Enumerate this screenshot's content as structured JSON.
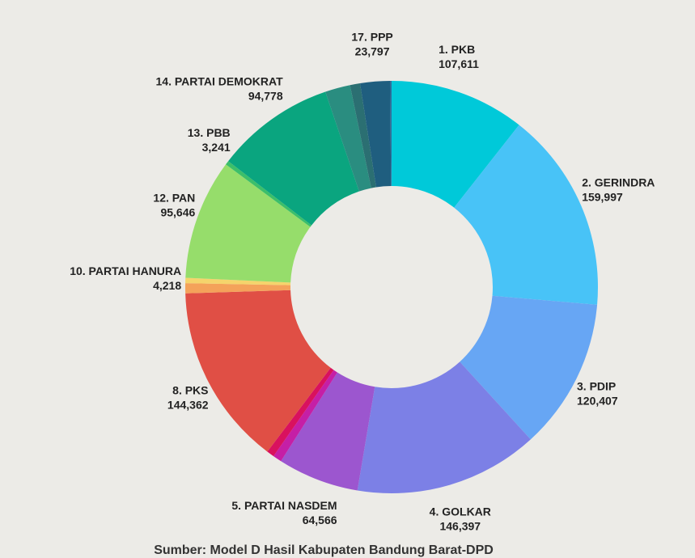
{
  "chart_data": {
    "type": "donut",
    "categories": [
      "1. PKB",
      "2. GERINDRA",
      "3. PDIP",
      "4. GOLKAR",
      "5. PARTAI NASDEM",
      null,
      null,
      "8. PKS",
      null,
      "10. PARTAI HANURA",
      "12. PAN",
      "13. PBB",
      "14. PARTAI DEMOKRAT",
      null,
      null,
      "17. PPP",
      null
    ],
    "values": [
      107611,
      159997,
      120407,
      146397,
      64566,
      7000,
      6000,
      144362,
      8000,
      4218,
      95646,
      3241,
      94778,
      20000,
      8000,
      23797,
      1000
    ],
    "value_labels": [
      "107,611",
      "159,997",
      "120,407",
      "146,397",
      "64,566",
      null,
      null,
      "144,362",
      null,
      "4,218",
      "95,646",
      "3,241",
      "94,778",
      null,
      null,
      "23,797",
      null
    ],
    "colors": [
      "#00c9d9",
      "#48c3f7",
      "#67a6f4",
      "#7c80e6",
      "#9c56cf",
      "#c51fa6",
      "#d9115e",
      "#e04f45",
      "#f4a25a",
      "#f5d46c",
      "#96dd6b",
      "#3cbf6a",
      "#0aa57f",
      "#2a8d80",
      "#2b6f72",
      "#1f5e7f",
      "#2e6ea0"
    ],
    "source": "Sumber: Model D Hasil Kabupaten Bandung Barat-DPD"
  }
}
